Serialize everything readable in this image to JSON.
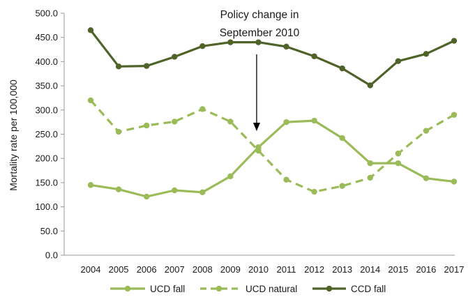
{
  "chart_data": {
    "type": "line",
    "title": "",
    "xlabel": "",
    "ylabel": "Mortality rate per 100,000",
    "ylim": [
      0,
      500
    ],
    "y_ticks": [
      "0.0",
      "50.0",
      "100.0",
      "150.0",
      "200.0",
      "250.0",
      "300.0",
      "350.0",
      "400.0",
      "450.0",
      "500.0"
    ],
    "categories": [
      "2004",
      "2005",
      "2006",
      "2007",
      "2008",
      "2009",
      "2010",
      "2011",
      "2012",
      "2013",
      "2014",
      "2015",
      "2016",
      "2017"
    ],
    "grid": false,
    "legend_position": "bottom",
    "series": [
      {
        "name": "UCD fall",
        "style": "solid",
        "color": "#9bbb59",
        "marker": "circle",
        "values": [
          145,
          136,
          121,
          134,
          130,
          163,
          223,
          275,
          278,
          242,
          190,
          190,
          159,
          152
        ]
      },
      {
        "name": "UCD natural",
        "style": "dashed",
        "color": "#9bbb59",
        "marker": "circle",
        "values": [
          320,
          255,
          268,
          276,
          302,
          276,
          216,
          156,
          131,
          143,
          160,
          210,
          257,
          290
        ]
      },
      {
        "name": "CCD fall",
        "style": "solid",
        "color": "#4f6228",
        "marker": "circle",
        "values": [
          465,
          390,
          391,
          410,
          432,
          440,
          440,
          431,
          411,
          386,
          351,
          401,
          416,
          443
        ]
      }
    ],
    "annotation": {
      "lines": [
        "Policy change in",
        "September 2010"
      ],
      "arrow_category": "2010"
    }
  }
}
